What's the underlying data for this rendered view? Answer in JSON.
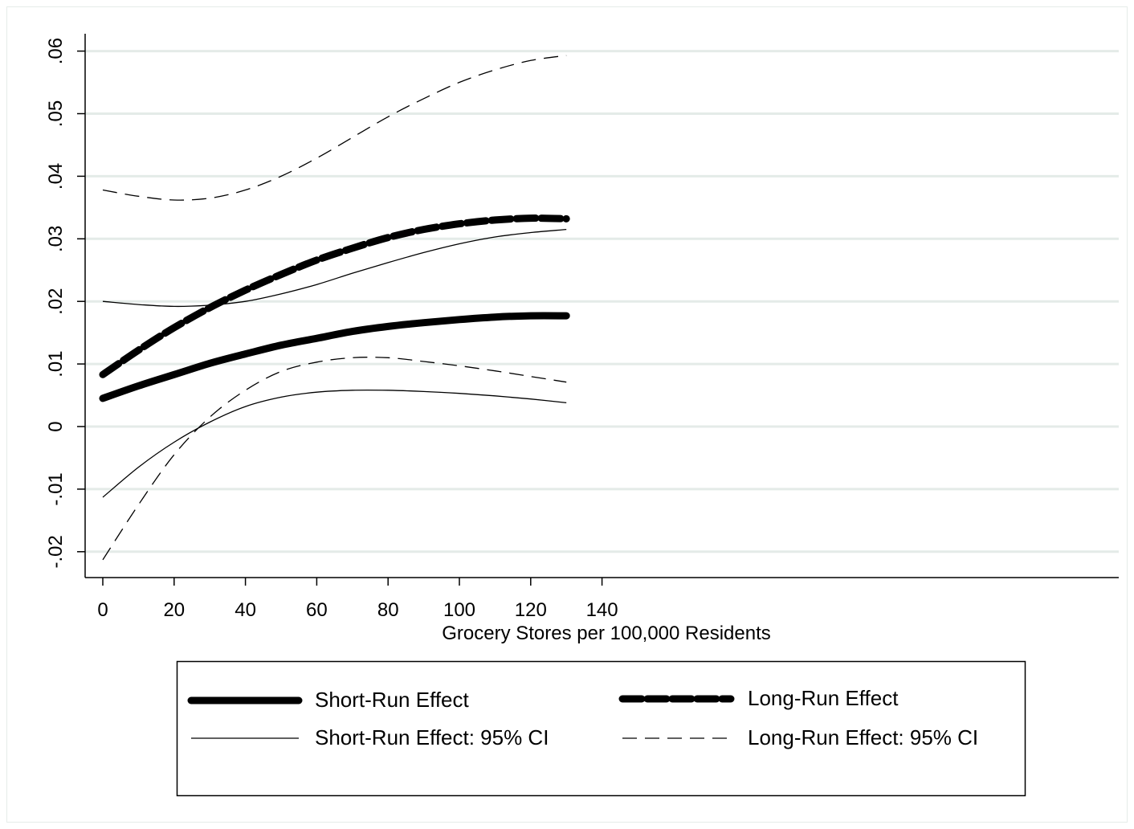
{
  "chart_data": {
    "type": "line",
    "title": "",
    "xlabel": "Grocery Stores per 100,000 Residents",
    "ylabel": "",
    "xlim": [
      0,
      140
    ],
    "ylim": [
      -0.02,
      0.06
    ],
    "xticks": [
      0,
      20,
      40,
      60,
      80,
      100,
      120,
      140
    ],
    "xtick_labels": [
      "0",
      "20",
      "40",
      "60",
      "80",
      "100",
      "120",
      "140"
    ],
    "yticks": [
      -0.02,
      -0.01,
      0,
      0.01,
      0.02,
      0.03,
      0.04,
      0.05,
      0.06
    ],
    "ytick_labels": [
      "-.02",
      "-.01",
      "0",
      ".01",
      ".02",
      ".03",
      ".04",
      ".05",
      ".06"
    ],
    "grid": true,
    "legend_position": "bottom",
    "x": [
      0,
      10,
      20,
      30,
      40,
      50,
      60,
      70,
      80,
      90,
      100,
      110,
      120,
      130
    ],
    "series": [
      {
        "name": "Short-Run Effect",
        "style": "thick-solid",
        "values": [
          0.0045,
          0.0065,
          0.0083,
          0.0101,
          0.0116,
          0.013,
          0.0141,
          0.0152,
          0.016,
          0.0166,
          0.0171,
          0.0175,
          0.0177,
          0.0177
        ]
      },
      {
        "name": "Long-Run Effect",
        "style": "thick-dashed",
        "values": [
          0.0083,
          0.0122,
          0.0158,
          0.019,
          0.0218,
          0.0243,
          0.0266,
          0.0285,
          0.0302,
          0.0315,
          0.0324,
          0.033,
          0.0333,
          0.0332
        ]
      },
      {
        "name": "Short-Run Effect: 95% CI",
        "style": "thin-solid",
        "values": [
          0.02,
          0.0195,
          0.0192,
          0.0194,
          0.02,
          0.0212,
          0.0227,
          0.0245,
          0.0262,
          0.0278,
          0.0292,
          0.0303,
          0.031,
          0.0315
        ]
      },
      {
        "name": "",
        "style": "thin-solid",
        "values": [
          -0.0113,
          -0.0065,
          -0.0025,
          0.0007,
          0.0032,
          0.0047,
          0.0055,
          0.0058,
          0.0058,
          0.0056,
          0.0053,
          0.0049,
          0.0044,
          0.0038
        ]
      },
      {
        "name": "Long-Run Effect: 95% CI",
        "style": "thin-dashed",
        "values": [
          0.0378,
          0.0368,
          0.0362,
          0.0365,
          0.0378,
          0.04,
          0.0429,
          0.0462,
          0.0495,
          0.0524,
          0.055,
          0.057,
          0.0585,
          0.0593
        ]
      },
      {
        "name": "",
        "style": "thin-dashed",
        "values": [
          -0.0213,
          -0.0125,
          -0.0045,
          0.0015,
          0.0058,
          0.0088,
          0.0103,
          0.011,
          0.011,
          0.0104,
          0.0097,
          0.0089,
          0.008,
          0.0071
        ]
      }
    ],
    "legend": [
      {
        "label": "Short-Run Effect",
        "style": "thick-solid"
      },
      {
        "label": "Long-Run Effect",
        "style": "thick-dashed"
      },
      {
        "label": "Short-Run Effect: 95% CI",
        "style": "thin-solid"
      },
      {
        "label": "Long-Run Effect: 95% CI",
        "style": "thin-dashed"
      }
    ],
    "colors": {
      "line": "#000000",
      "grid": "#e4ebe8",
      "frame": "#e6ece9"
    }
  }
}
